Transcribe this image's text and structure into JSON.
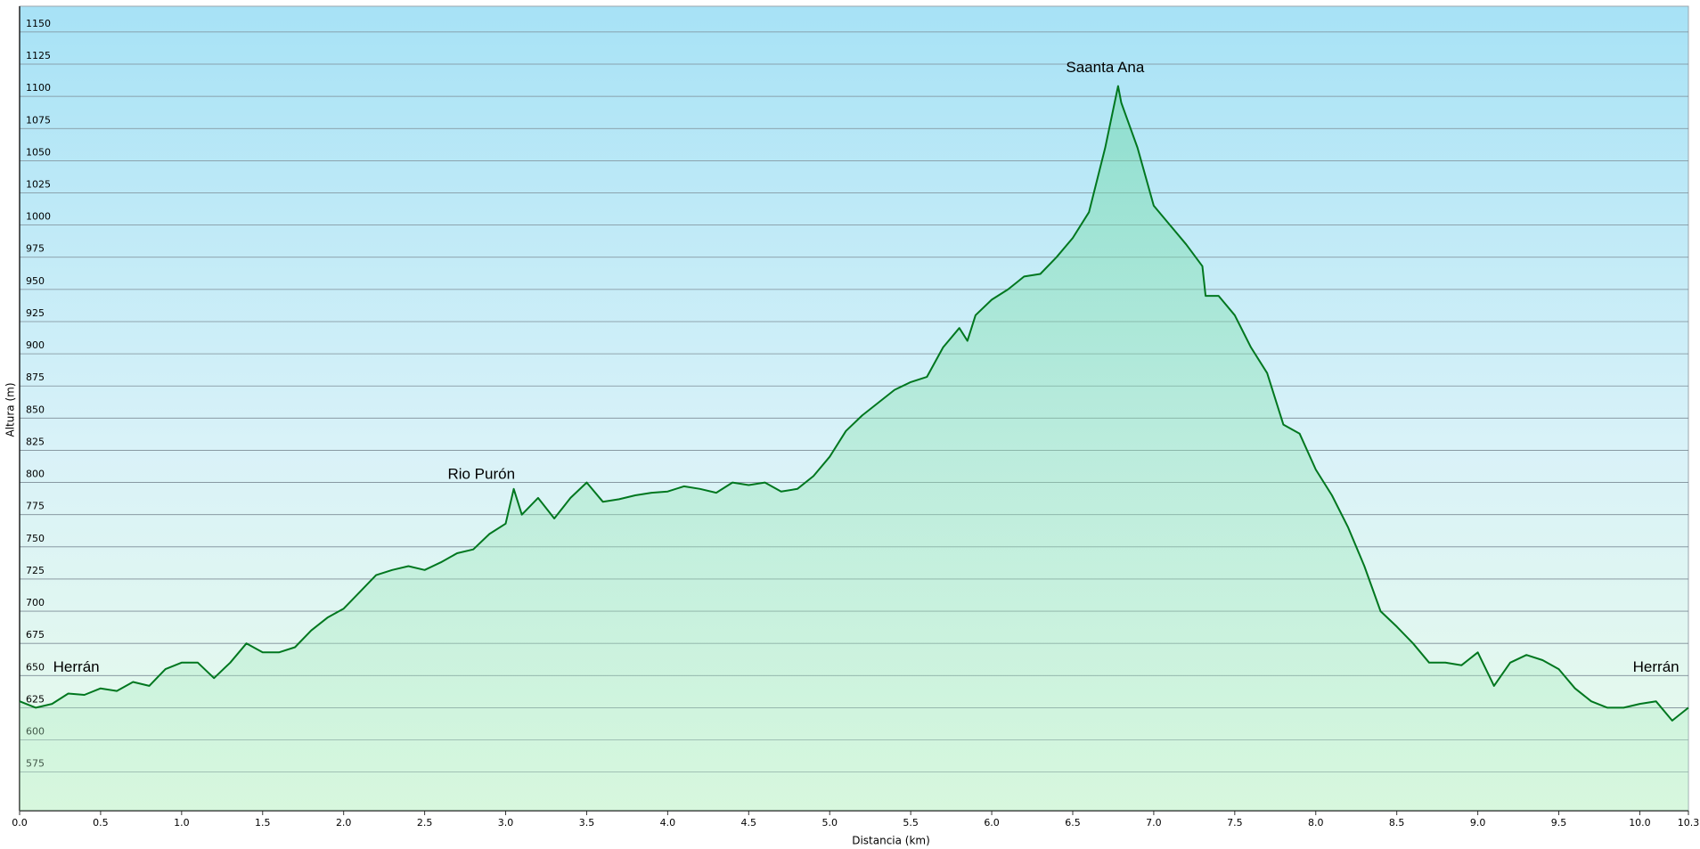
{
  "chart_data": {
    "type": "area",
    "x_label": "Distancia  (km)",
    "y_label": "Altura (m)",
    "color": "#00771f",
    "xlim": [
      0,
      10.3
    ],
    "ylim": [
      545,
      1170
    ],
    "xticks": [
      {
        "value": 0,
        "label": "0.0"
      },
      0.5,
      {
        "value": 1,
        "label": "1.0"
      },
      1.5,
      {
        "value": 2,
        "label": "2.0"
      },
      2.5,
      {
        "value": 3,
        "label": "3.0"
      },
      3.5,
      {
        "value": 4,
        "label": "4.0"
      },
      4.5,
      {
        "value": 5,
        "label": "5.0"
      },
      5.5,
      {
        "value": 6,
        "label": "6.0"
      },
      6.5,
      {
        "value": 7,
        "label": "7.0"
      },
      7.5,
      {
        "value": 8,
        "label": "8.0"
      },
      8.5,
      {
        "value": 9,
        "label": "9.0"
      },
      9.5,
      {
        "value": 10,
        "label": "10.0"
      },
      10.3
    ],
    "yticks": [
      575,
      600,
      625,
      650,
      675,
      700,
      725,
      750,
      775,
      800,
      825,
      850,
      875,
      900,
      925,
      950,
      975,
      1000,
      1025,
      1050,
      1075,
      1100,
      1125,
      1150
    ],
    "grid": true,
    "x": [
      0,
      0.1,
      0.2,
      0.3,
      0.4,
      0.5,
      0.6,
      0.7,
      0.8,
      0.9,
      1.0,
      1.1,
      1.2,
      1.3,
      1.4,
      1.5,
      1.6,
      1.7,
      1.8,
      1.9,
      2.0,
      2.1,
      2.2,
      2.3,
      2.4,
      2.5,
      2.6,
      2.7,
      2.8,
      2.9,
      3.0,
      3.05,
      3.1,
      3.2,
      3.3,
      3.4,
      3.5,
      3.6,
      3.7,
      3.8,
      3.9,
      4.0,
      4.1,
      4.2,
      4.3,
      4.4,
      4.5,
      4.6,
      4.7,
      4.8,
      4.9,
      5.0,
      5.1,
      5.2,
      5.3,
      5.4,
      5.5,
      5.6,
      5.7,
      5.8,
      5.85,
      5.9,
      6.0,
      6.1,
      6.2,
      6.3,
      6.4,
      6.5,
      6.6,
      6.7,
      6.78,
      6.8,
      6.9,
      7.0,
      7.1,
      7.2,
      7.3,
      7.32,
      7.4,
      7.5,
      7.6,
      7.7,
      7.8,
      7.9,
      8.0,
      8.1,
      8.2,
      8.3,
      8.4,
      8.5,
      8.6,
      8.7,
      8.8,
      8.9,
      9.0,
      9.1,
      9.2,
      9.3,
      9.4,
      9.5,
      9.6,
      9.7,
      9.8,
      9.9,
      10.0,
      10.1,
      10.2,
      10.3
    ],
    "values": [
      630,
      625,
      628,
      636,
      635,
      640,
      638,
      645,
      642,
      655,
      660,
      660,
      648,
      660,
      675,
      668,
      668,
      672,
      685,
      695,
      702,
      715,
      728,
      732,
      735,
      732,
      738,
      745,
      748,
      760,
      768,
      795,
      775,
      788,
      772,
      788,
      800,
      785,
      787,
      790,
      792,
      793,
      797,
      795,
      792,
      800,
      798,
      800,
      793,
      795,
      805,
      820,
      840,
      852,
      862,
      872,
      878,
      882,
      905,
      920,
      910,
      930,
      942,
      950,
      960,
      962,
      975,
      990,
      1010,
      1060,
      1108,
      1095,
      1060,
      1015,
      1000,
      985,
      968,
      945,
      945,
      930,
      905,
      885,
      845,
      838,
      810,
      790,
      765,
      735,
      700,
      688,
      675,
      660,
      660,
      658,
      668,
      642,
      660,
      666,
      662,
      655,
      640,
      630,
      625,
      625,
      628,
      630,
      615,
      625
    ],
    "annotations": [
      {
        "text": "Herrán",
        "x": 0.35,
        "y": 656
      },
      {
        "text": "Rio Purón",
        "x": 2.85,
        "y": 806
      },
      {
        "text": "Saanta Ana",
        "x": 6.7,
        "y": 1122
      },
      {
        "text": "Herrán",
        "x": 10.1,
        "y": 656
      }
    ]
  }
}
